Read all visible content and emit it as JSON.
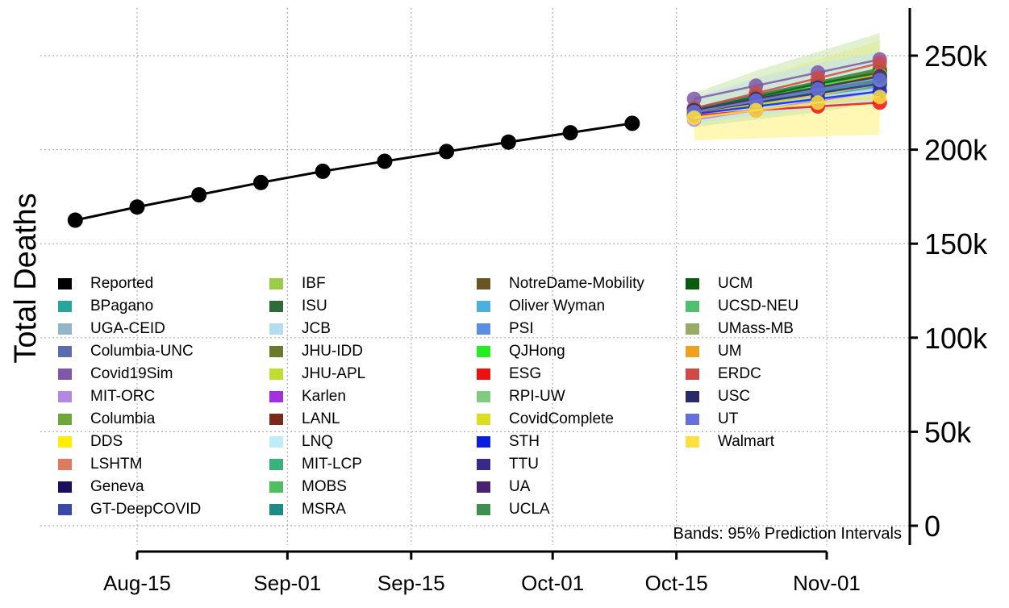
{
  "chart_data": {
    "type": "line",
    "title": "",
    "xlabel": "",
    "ylabel": "Total Deaths",
    "x_ticks": [
      "Aug-15",
      "Sep-01",
      "Sep-15",
      "Oct-01",
      "Oct-15",
      "Nov-01"
    ],
    "y_ticks": [
      "0",
      "50k",
      "100k",
      "150k",
      "200k",
      "250k"
    ],
    "ylim": [
      0,
      275000
    ],
    "xlim": [
      "2020-08-03",
      "2020-11-08"
    ],
    "grid": true,
    "annotation": "Bands: 95% Prediction Intervals",
    "reported": {
      "name": "Reported",
      "color": "#000000",
      "x": [
        "2020-08-08",
        "2020-08-15",
        "2020-08-22",
        "2020-08-29",
        "2020-09-05",
        "2020-09-12",
        "2020-09-19",
        "2020-09-26",
        "2020-10-03",
        "2020-10-10"
      ],
      "values": [
        162500,
        169500,
        176000,
        182500,
        188500,
        193800,
        199000,
        204000,
        209000,
        214000
      ]
    },
    "forecast_x": [
      "2020-10-17",
      "2020-10-24",
      "2020-10-31",
      "2020-11-07"
    ],
    "bands": [
      {
        "name": "Walmart",
        "color": "#fff176",
        "lower": [
          205000,
          206000,
          207000,
          208000
        ],
        "upper": [
          226000,
          238000,
          248000,
          258000
        ]
      },
      {
        "name": "UCLA",
        "color": "#c8e6a8",
        "lower": [
          212000,
          216000,
          220000,
          225000
        ],
        "upper": [
          230000,
          242000,
          252000,
          262000
        ]
      },
      {
        "name": "Columbia",
        "color": "#c5e1f5",
        "lower": [
          214000,
          218000,
          222000,
          226000
        ],
        "upper": [
          228000,
          238000,
          246000,
          252000
        ]
      }
    ],
    "series": [
      {
        "name": "Reported",
        "color": "#000000"
      },
      {
        "name": "BPagano",
        "color": "#26a69a",
        "values": [
          221000,
          228000,
          235000,
          242000
        ]
      },
      {
        "name": "UGA-CEID",
        "color": "#90b4c8",
        "values": [
          219000,
          224000,
          229000,
          233000
        ]
      },
      {
        "name": "Columbia-UNC",
        "color": "#5c6bb0",
        "values": [
          220000,
          226000,
          232000,
          238000
        ]
      },
      {
        "name": "Covid19Sim",
        "color": "#7e57a8",
        "values": [
          227000,
          234000,
          241000,
          248000
        ]
      },
      {
        "name": "MIT-ORC",
        "color": "#b388e0",
        "values": [
          216000,
          221000,
          226000,
          231000
        ]
      },
      {
        "name": "Columbia",
        "color": "#6aa83a",
        "values": [
          222000,
          229000,
          236000,
          243000
        ]
      },
      {
        "name": "DDS",
        "color": "#ffee00",
        "values": [
          219000,
          223000,
          227000,
          231000
        ]
      },
      {
        "name": "LSHTM",
        "color": "#e07a5f",
        "values": [
          221000,
          227000,
          233000,
          239000
        ]
      },
      {
        "name": "Geneva",
        "color": "#1a1060",
        "values": [
          220000,
          225000,
          230000,
          235000
        ]
      },
      {
        "name": "GT-DeepCOVID",
        "color": "#3949ab",
        "values": [
          219000,
          224000,
          229000,
          234000
        ]
      },
      {
        "name": "IBF",
        "color": "#9ccc45",
        "values": [
          221000,
          227000,
          233000,
          239000
        ]
      },
      {
        "name": "ISU",
        "color": "#2e6b3a",
        "values": [
          220000,
          226000,
          232000,
          238000
        ]
      },
      {
        "name": "JCB",
        "color": "#b3ddf0",
        "values": [
          218000,
          223000,
          228000,
          232000
        ]
      },
      {
        "name": "JHU-IDD",
        "color": "#6b7a2a",
        "values": [
          222000,
          229000,
          236000,
          242000
        ]
      },
      {
        "name": "JHU-APL",
        "color": "#c0dd30",
        "values": [
          221000,
          227000,
          233000,
          238000
        ]
      },
      {
        "name": "Karlen",
        "color": "#a030e0",
        "values": [
          219000,
          224000,
          230000,
          235000
        ]
      },
      {
        "name": "LANL",
        "color": "#7a2a1a",
        "values": [
          220000,
          226000,
          232000,
          237000
        ]
      },
      {
        "name": "LNQ",
        "color": "#c0ecf8",
        "values": [
          218000,
          222000,
          227000,
          231000
        ]
      },
      {
        "name": "MIT-LCP",
        "color": "#3ab07a",
        "values": [
          221000,
          227000,
          233000,
          239000
        ]
      },
      {
        "name": "MOBS",
        "color": "#4cc060",
        "values": [
          222000,
          228000,
          234000,
          240000
        ]
      },
      {
        "name": "MSRA",
        "color": "#1e8c86",
        "values": [
          220000,
          225000,
          231000,
          236000
        ]
      },
      {
        "name": "NotreDame-Mobility",
        "color": "#6b5420",
        "values": [
          221000,
          227000,
          233000,
          238000
        ]
      },
      {
        "name": "Oliver Wyman",
        "color": "#4ab0dd",
        "values": [
          219000,
          224000,
          229000,
          234000
        ]
      },
      {
        "name": "PSI",
        "color": "#5a8ee0",
        "values": [
          220000,
          226000,
          232000,
          237000
        ]
      },
      {
        "name": "QJHong",
        "color": "#22ee22",
        "values": [
          221000,
          227000,
          234000,
          240000
        ]
      },
      {
        "name": "ESG",
        "color": "#ee1111",
        "values": [
          218000,
          221000,
          223000,
          225000
        ]
      },
      {
        "name": "RPI-UW",
        "color": "#7ecc80",
        "values": [
          220000,
          226000,
          232000,
          238000
        ]
      },
      {
        "name": "CovidComplete",
        "color": "#dddd20",
        "values": [
          219000,
          224000,
          229000,
          235000
        ]
      },
      {
        "name": "STH",
        "color": "#0a1ee0",
        "values": [
          219000,
          223000,
          227000,
          231000
        ]
      },
      {
        "name": "TTU",
        "color": "#3a2a8a",
        "values": [
          220000,
          225000,
          230000,
          235000
        ]
      },
      {
        "name": "UA",
        "color": "#4a2070",
        "values": [
          221000,
          227000,
          233000,
          239000
        ]
      },
      {
        "name": "UCLA",
        "color": "#3e9050",
        "values": [
          222000,
          229000,
          236000,
          243000
        ]
      },
      {
        "name": "UCM",
        "color": "#0a5a10",
        "values": [
          221000,
          228000,
          235000,
          241000
        ]
      },
      {
        "name": "UCSD-NEU",
        "color": "#50c070",
        "values": [
          220000,
          226000,
          232000,
          237000
        ]
      },
      {
        "name": "UMass-MB",
        "color": "#9aaa68",
        "values": [
          221000,
          227000,
          233000,
          239000
        ]
      },
      {
        "name": "UM",
        "color": "#f0a020",
        "values": [
          220000,
          226000,
          233000,
          240000
        ]
      },
      {
        "name": "ERDC",
        "color": "#d04848",
        "values": [
          222000,
          230000,
          238000,
          246000
        ]
      },
      {
        "name": "USC",
        "color": "#2a2a6a",
        "values": [
          221000,
          227000,
          233000,
          239000
        ]
      },
      {
        "name": "UT",
        "color": "#6670d8",
        "values": [
          220000,
          226000,
          232000,
          237000
        ]
      },
      {
        "name": "Walmart",
        "color": "#ffe040",
        "values": [
          217000,
          221000,
          225000,
          228000
        ]
      }
    ]
  }
}
